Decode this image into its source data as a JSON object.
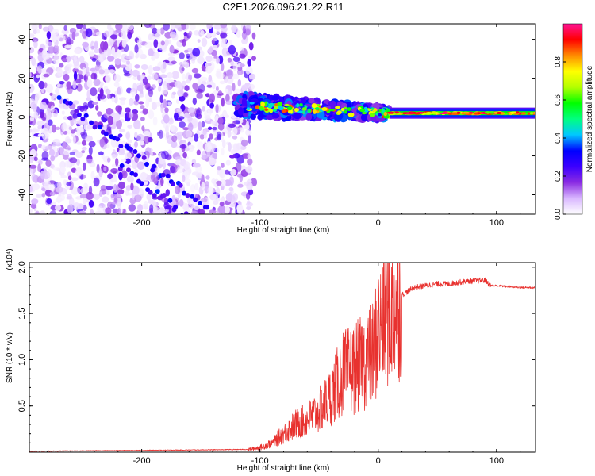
{
  "title": "C2E1.2026.096.21.22.R11",
  "chart_data": [
    {
      "type": "heatmap",
      "xlabel": "Height of straight line (km)",
      "ylabel": "Frequency (Hz)",
      "xlim": [
        -295,
        133
      ],
      "ylim": [
        -50,
        48
      ],
      "x_ticks": [
        -200,
        -100,
        0,
        100
      ],
      "y_ticks": [
        -40,
        -20,
        0,
        20,
        40
      ],
      "colorbar": {
        "label": "Normalized spectral amplitude",
        "range": [
          0,
          1
        ],
        "ticks": [
          0.0,
          0.2,
          0.4,
          0.6,
          0.8
        ],
        "colors": [
          "#ffffff",
          "#d9b8ff",
          "#8a2be2",
          "#3b00ff",
          "#0000ff",
          "#00c8ff",
          "#00ff80",
          "#00ff00",
          "#b4ff00",
          "#ffff00",
          "#ff8c00",
          "#ff0000",
          "#ff1493"
        ]
      },
      "regions": [
        {
          "name": "scattered noise",
          "x_range": [
            -295,
            -105
          ],
          "freq_range": [
            -50,
            48
          ],
          "amplitude": [
            0.02,
            0.25
          ]
        },
        {
          "name": "converging band",
          "x_range": [
            -120,
            10
          ],
          "center_freq": [
            6,
            2
          ],
          "amplitude": [
            0.3,
            0.9
          ]
        },
        {
          "name": "steady band",
          "x_range": [
            10,
            133
          ],
          "center_freq": [
            2,
            2
          ],
          "amplitude": [
            0.6,
            1.0
          ]
        }
      ]
    },
    {
      "type": "line",
      "xlabel": "Height of straight line (km)",
      "ylabel": "SNR (10 * v/v)",
      "scale_note": "(x10⁴)",
      "xlim": [
        -295,
        133
      ],
      "ylim": [
        0,
        2.05
      ],
      "x_ticks": [
        -200,
        -100,
        0,
        100
      ],
      "y_ticks": [
        0.5,
        1.0,
        1.5,
        2.0
      ],
      "line_color": "#e8322f",
      "series": [
        {
          "x": [
            -295,
            -250,
            -200,
            -150,
            -110,
            -100,
            -90,
            -80,
            -70,
            -60,
            -50,
            -40,
            -30,
            -20,
            -10,
            -5,
            0,
            10,
            20,
            30,
            40,
            50,
            60,
            70,
            80,
            90,
            95,
            100,
            110,
            120,
            133
          ],
          "y": [
            0.01,
            0.015,
            0.02,
            0.025,
            0.03,
            0.05,
            0.1,
            0.2,
            0.3,
            0.35,
            0.45,
            0.6,
            0.85,
            0.9,
            1.0,
            1.05,
            1.3,
            1.55,
            1.7,
            1.78,
            1.8,
            1.82,
            1.82,
            1.84,
            1.85,
            1.86,
            1.8,
            1.8,
            1.79,
            1.78,
            1.78
          ]
        }
      ]
    }
  ]
}
